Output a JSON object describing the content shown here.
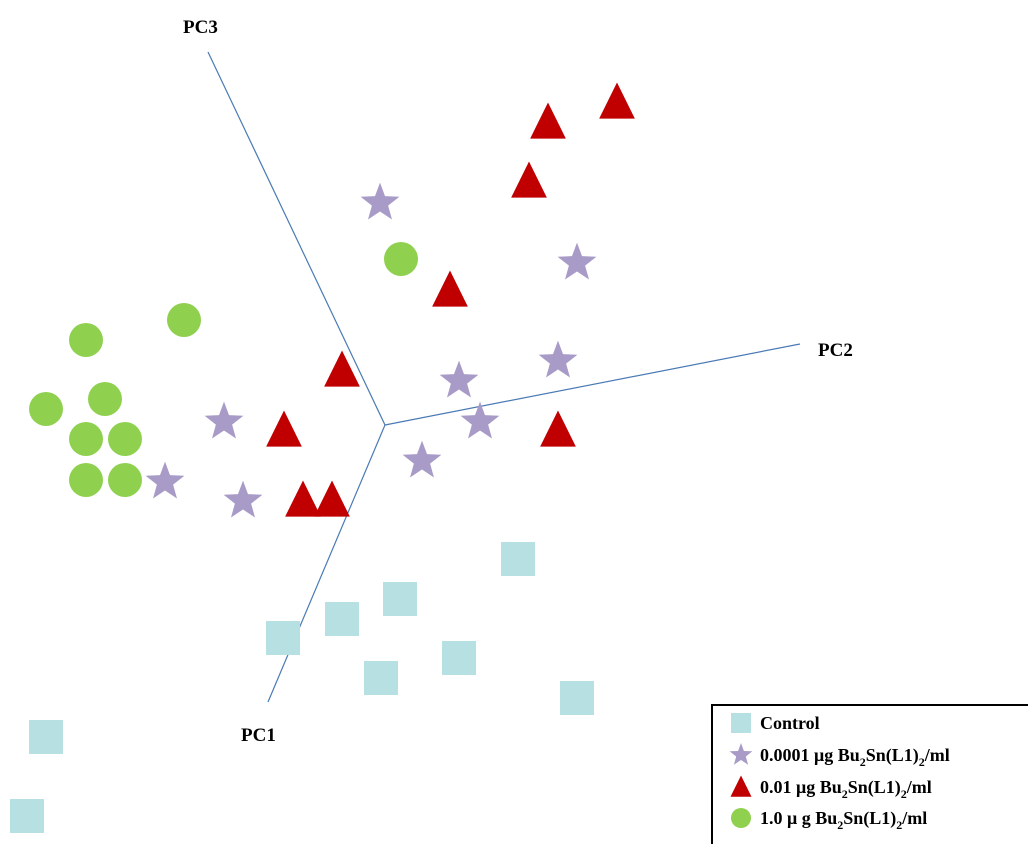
{
  "chart_data": {
    "type": "scatter",
    "title": "",
    "axes": {
      "pc1": "PC1",
      "pc2": "PC2",
      "pc3": "PC3"
    },
    "legend_position": "bottom-right",
    "grid": false,
    "series": [
      {
        "name": "Control",
        "marker": "square",
        "color": "#b7e0e3",
        "points": [
          [
            518,
            559
          ],
          [
            400,
            599
          ],
          [
            342,
            619
          ],
          [
            283,
            638
          ],
          [
            459,
            658
          ],
          [
            381,
            678
          ],
          [
            577,
            698
          ],
          [
            46,
            737
          ],
          [
            27,
            816
          ]
        ]
      },
      {
        "name": "0.0001 μg Bu2Sn(L1)2/ml",
        "marker": "star",
        "color": "#a89bc7",
        "points": [
          [
            380,
            203
          ],
          [
            577,
            263
          ],
          [
            558,
            361
          ],
          [
            459,
            381
          ],
          [
            224,
            422
          ],
          [
            480,
            422
          ],
          [
            422,
            461
          ],
          [
            165,
            482
          ],
          [
            243,
            501
          ]
        ]
      },
      {
        "name": "0.01 μg Bu2Sn(L1)2/ml",
        "marker": "triangle",
        "color": "#c00000",
        "points": [
          [
            617,
            102
          ],
          [
            548,
            122
          ],
          [
            529,
            181
          ],
          [
            450,
            290
          ],
          [
            342,
            370
          ],
          [
            284,
            430
          ],
          [
            558,
            430
          ],
          [
            303,
            500
          ],
          [
            332,
            500
          ]
        ]
      },
      {
        "name": "1.0 μ g Bu2Sn(L1)2/ml",
        "marker": "circle",
        "color": "#8fd14f",
        "points": [
          [
            401,
            259
          ],
          [
            184,
            320
          ],
          [
            86,
            340
          ],
          [
            105,
            399
          ],
          [
            46,
            409
          ],
          [
            86,
            439
          ],
          [
            125,
            439
          ],
          [
            86,
            480
          ],
          [
            125,
            480
          ]
        ]
      }
    ]
  },
  "legend": {
    "items": [
      {
        "pre": "Control",
        "sub1": "",
        "mid": "",
        "sub2": "",
        "post": ""
      },
      {
        "pre": "0.0001 μg Bu",
        "sub1": "2",
        "mid": "Sn(L1)",
        "sub2": "2",
        "post": "/ml"
      },
      {
        "pre": "0.01 μg Bu",
        "sub1": "2",
        "mid": "Sn(L1)",
        "sub2": "2",
        "post": "/ml"
      },
      {
        "pre": "1.0 μ g Bu",
        "sub1": "2",
        "mid": "Sn(L1)",
        "sub2": "2",
        "post": "/ml"
      }
    ]
  }
}
